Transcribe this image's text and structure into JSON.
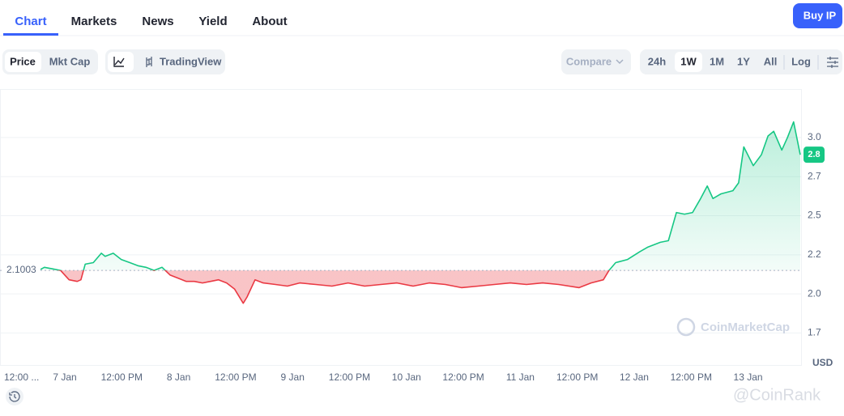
{
  "tabs": [
    "Chart",
    "Markets",
    "News",
    "Yield",
    "About"
  ],
  "buy_button": "Buy IP",
  "toolbar": {
    "metric": [
      "Price",
      "Mkt Cap"
    ],
    "chart_mode": "TradingView",
    "compare": "Compare",
    "ranges": [
      "24h",
      "1W",
      "1M",
      "1Y",
      "All"
    ],
    "log": "Log"
  },
  "watermarks": [
    "CoinMarketCap",
    "@CoinRank"
  ],
  "chart_data": {
    "type": "line",
    "x": [
      -5.5,
      -4.3,
      -2.6,
      -0.9,
      0.9,
      2.6,
      3.4,
      4.3,
      6.0,
      7.7,
      8.5,
      10.2,
      11.9,
      13.7,
      15.4,
      17.1,
      18.8,
      20.5,
      22.2,
      23.9,
      25.6,
      27.3,
      29.0,
      30.7,
      32.4,
      34.1,
      35.8,
      37.6,
      38.4,
      40.1,
      41.8,
      44.4,
      46.9,
      49.5,
      52.9,
      56.3,
      59.7,
      63.2,
      66.6,
      70.0,
      73.4,
      76.8,
      80.2,
      83.6,
      87.1,
      90.5,
      93.9,
      97.3,
      100.7,
      104.1,
      108.4,
      110.9,
      113.5,
      114.7,
      116.1,
      118.6,
      121.2,
      122.9,
      125.5,
      127.2,
      128.9,
      130.6,
      132.3,
      134.0,
      135.4,
      136.6,
      138.3,
      140.8,
      142.0,
      143.1,
      145.1,
      146.8,
      148.2,
      149.4,
      151.1,
      152.3,
      153.6,
      155.0
    ],
    "values": [
      2.1,
      2.12,
      2.11,
      2.1,
      2.04,
      2.03,
      2.04,
      2.14,
      2.15,
      2.21,
      2.19,
      2.21,
      2.17,
      2.15,
      2.13,
      2.12,
      2.1,
      2.12,
      2.07,
      2.05,
      2.03,
      2.03,
      2.02,
      2.03,
      2.04,
      2.02,
      1.98,
      1.89,
      1.93,
      2.04,
      2.02,
      2.01,
      2.0,
      2.02,
      2.01,
      2.0,
      2.02,
      2.0,
      2.01,
      2.02,
      2.0,
      2.02,
      2.01,
      1.99,
      2.0,
      2.01,
      2.02,
      2.01,
      2.02,
      2.01,
      1.99,
      2.02,
      2.04,
      2.1,
      2.15,
      2.17,
      2.22,
      2.25,
      2.28,
      2.29,
      2.47,
      2.46,
      2.47,
      2.56,
      2.64,
      2.56,
      2.59,
      2.61,
      2.66,
      2.89,
      2.77,
      2.84,
      2.96,
      2.99,
      2.87,
      2.95,
      3.05,
      2.84
    ],
    "up_color": "#16c784",
    "down_color": "#ea3943",
    "baseline": 2.1003,
    "current_price": {
      "value": 2.84,
      "label": "2.8"
    },
    "y_unit": "USD",
    "xlim": [
      -13.66,
      155.34
    ],
    "xticks": [
      {
        "value": -12,
        "label": "12:00 ..."
      },
      {
        "value": 0,
        "label": "7 Jan"
      },
      {
        "value": 12,
        "label": "12:00 PM"
      },
      {
        "value": 24,
        "label": "8 Jan"
      },
      {
        "value": 36,
        "label": "12:00 PM"
      },
      {
        "value": 48,
        "label": "9 Jan"
      },
      {
        "value": 60,
        "label": "12:00 PM"
      },
      {
        "value": 72,
        "label": "10 Jan"
      },
      {
        "value": 84,
        "label": "12:00 PM"
      },
      {
        "value": 96,
        "label": "11 Jan"
      },
      {
        "value": 108,
        "label": "12:00 PM"
      },
      {
        "value": 120,
        "label": "12 Jan"
      },
      {
        "value": 132,
        "label": "12:00 PM"
      },
      {
        "value": 144,
        "label": "13 Jan"
      }
    ],
    "ylim": [
      1.49,
      3.26
    ],
    "yticks": [
      1.7,
      {
        "value": 1.95,
        "label": "2.0"
      },
      2.2,
      {
        "value": 2.45,
        "label": "2.5"
      },
      2.7,
      {
        "value": 2.95,
        "label": "3.0"
      }
    ],
    "grid": true
  }
}
